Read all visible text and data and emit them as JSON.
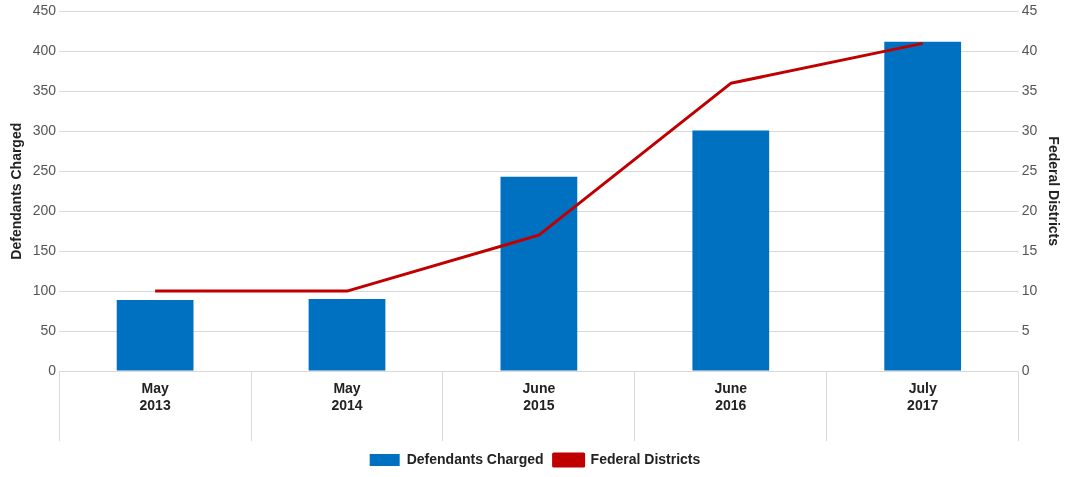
{
  "chart_data": {
    "type": "bar",
    "categories": [
      "May 2013",
      "May 2014",
      "June 2015",
      "June 2016",
      "July 2017"
    ],
    "series": [
      {
        "name": "Defendants Charged",
        "color": "#0070c0",
        "values": [
          89,
          90,
          243,
          301,
          412
        ]
      },
      {
        "name": "Federal Districts",
        "type": "line",
        "axis": "y2",
        "color": "#c00000",
        "values": [
          10,
          10,
          17,
          36,
          41
        ]
      }
    ],
    "ylabel": "Defendants Charged",
    "y2label": "Federal Districts",
    "ylim": [
      0,
      450
    ],
    "yticks": [
      0,
      50,
      100,
      150,
      200,
      250,
      300,
      350,
      400,
      450
    ],
    "y2lim": [
      0,
      45
    ],
    "y2ticks": [
      0,
      5,
      10,
      15,
      20,
      25,
      30,
      35,
      40,
      45
    ],
    "grid": "y",
    "legend": "bottom",
    "marker": "none"
  }
}
